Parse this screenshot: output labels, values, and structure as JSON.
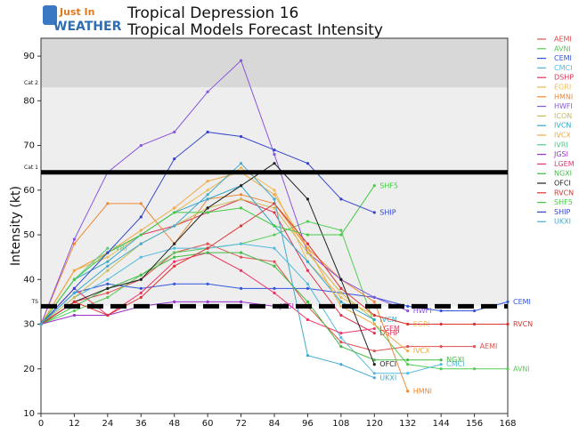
{
  "logo": {
    "line1": "Just In",
    "line2": "WEATHER"
  },
  "chart_data": {
    "type": "line",
    "title": "Tropical Depression 16",
    "subtitle": "Tropical Models Forecast Intensity",
    "y_label": "Intensity (kt)",
    "xlim": [
      0,
      168
    ],
    "ylim": [
      10,
      94
    ],
    "xticks": [
      0,
      12,
      24,
      36,
      48,
      60,
      72,
      84,
      96,
      108,
      120,
      132,
      144,
      156,
      168
    ],
    "yticks": [
      10,
      20,
      30,
      40,
      50,
      60,
      70,
      80,
      90
    ],
    "thresholds": [
      {
        "value": 34,
        "label": "TS"
      },
      {
        "value": 64,
        "label": "Cat 1"
      },
      {
        "value": 83,
        "label": "Cat 2"
      }
    ],
    "x": [
      0,
      12,
      24,
      36,
      48,
      60,
      72,
      84,
      96,
      108,
      120,
      132,
      144,
      156,
      168
    ],
    "legend": "right",
    "series": [
      {
        "name": "AEMI",
        "color": "#e05050",
        "end_label": true,
        "values": [
          30,
          35,
          37,
          40,
          46,
          48,
          45,
          44,
          34,
          26,
          24,
          25,
          25,
          25,
          null
        ]
      },
      {
        "name": "AVNI",
        "color": "#55cc55",
        "end_label": true,
        "values": [
          30,
          33,
          36,
          41,
          46,
          47,
          48,
          50,
          53,
          51,
          30,
          21,
          20,
          20,
          20
        ]
      },
      {
        "name": "CEMI",
        "color": "#3355dd",
        "end_label": true,
        "values": [
          30,
          37,
          39,
          38,
          39,
          39,
          38,
          38,
          38,
          37,
          36,
          34,
          33,
          33,
          35
        ]
      },
      {
        "name": "CMCI",
        "color": "#55bbdd",
        "end_label": true,
        "values": [
          30,
          36,
          40,
          45,
          47,
          47,
          48,
          47,
          39,
          27,
          19,
          19,
          21,
          null,
          null
        ]
      },
      {
        "name": "DSHP",
        "color": "#dd3355",
        "end_label": true,
        "values": [
          30,
          42,
          46,
          50,
          52,
          55,
          58,
          55,
          42,
          32,
          28,
          null,
          null,
          null,
          null
        ]
      },
      {
        "name": "EGRI",
        "color": "#eebb55",
        "end_label": true,
        "values": [
          30,
          42,
          45,
          50,
          55,
          60,
          65,
          60,
          44,
          36,
          32,
          30,
          null,
          null,
          null
        ]
      },
      {
        "name": "HMNI",
        "color": "#ee8833",
        "end_label": true,
        "values": [
          30,
          48,
          57,
          57,
          48,
          58,
          59,
          57,
          47,
          40,
          35,
          15,
          null,
          null,
          null
        ]
      },
      {
        "name": "HWFI",
        "color": "#8855dd",
        "end_label": true,
        "values": [
          30,
          49,
          64,
          70,
          73,
          82,
          89,
          68,
          46,
          40,
          36,
          33,
          null,
          null,
          null
        ]
      },
      {
        "name": "ICON",
        "color": "#ccbb55",
        "end_label": false,
        "values": [
          30,
          36,
          42,
          48,
          52,
          56,
          58,
          56,
          46,
          37,
          31,
          null,
          null,
          null,
          null
        ]
      },
      {
        "name": "IVCN",
        "color": "#33aacc",
        "end_label": true,
        "values": [
          30,
          40,
          44,
          50,
          55,
          58,
          61,
          52,
          44,
          35,
          31,
          null,
          null,
          null,
          null
        ]
      },
      {
        "name": "IVCX",
        "color": "#eeaa44",
        "end_label": true,
        "values": [
          30,
          42,
          46,
          51,
          56,
          62,
          64,
          59,
          47,
          34,
          30,
          24,
          null,
          null,
          null
        ]
      },
      {
        "name": "IVRI",
        "color": "#55cc88",
        "end_label": true,
        "values": [
          30,
          40,
          47,
          null,
          null,
          null,
          null,
          null,
          null,
          null,
          null,
          null,
          null,
          null,
          null
        ]
      },
      {
        "name": "JGSI",
        "color": "#9933cc",
        "end_label": true,
        "values": [
          30,
          32,
          32,
          34,
          35,
          35,
          35,
          34,
          null,
          null,
          null,
          null,
          null,
          null,
          null
        ]
      },
      {
        "name": "LGEM",
        "color": "#ee3366",
        "end_label": true,
        "values": [
          30,
          38,
          32,
          37,
          44,
          46,
          42,
          37,
          31,
          28,
          29,
          null,
          null,
          null,
          null
        ]
      },
      {
        "name": "NGXI",
        "color": "#44bb44",
        "end_label": true,
        "values": [
          30,
          34,
          38,
          41,
          45,
          46,
          46,
          43,
          35,
          25,
          22,
          22,
          22,
          null,
          null
        ]
      },
      {
        "name": "OFCI",
        "color": "#222222",
        "end_label": true,
        "values": [
          30,
          35,
          38,
          40,
          48,
          56,
          61,
          66,
          58,
          40,
          21,
          null,
          null,
          null,
          null
        ]
      },
      {
        "name": "RVCN",
        "color": "#dd3333",
        "end_label": true,
        "values": [
          30,
          35,
          32,
          36,
          43,
          47,
          52,
          57,
          48,
          38,
          32,
          30,
          30,
          30,
          30
        ]
      },
      {
        "name": "SHF5",
        "color": "#44cc44",
        "end_label": true,
        "values": [
          30,
          40,
          46,
          50,
          55,
          55,
          56,
          52,
          50,
          50,
          61,
          null,
          null,
          null,
          null
        ]
      },
      {
        "name": "SHIP",
        "color": "#3344cc",
        "end_label": true,
        "values": [
          30,
          38,
          46,
          54,
          67,
          73,
          72,
          69,
          66,
          58,
          55,
          null,
          null,
          null,
          null
        ]
      },
      {
        "name": "UKXI",
        "color": "#44aacc",
        "end_label": true,
        "values": [
          30,
          37,
          43,
          48,
          52,
          59,
          66,
          58,
          23,
          21,
          18,
          null,
          null,
          null,
          null
        ]
      }
    ]
  }
}
